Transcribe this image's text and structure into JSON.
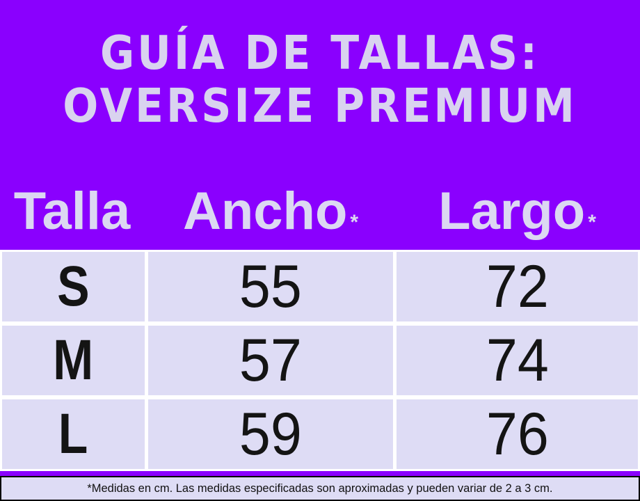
{
  "title": {
    "line1": "GUÍA DE TALLAS:",
    "line2": "OVERSIZE PREMIUM"
  },
  "table": {
    "columns": [
      {
        "label": "Talla",
        "suffix": ""
      },
      {
        "label": "Ancho",
        "suffix": "*"
      },
      {
        "label": "Largo",
        "suffix": "*"
      }
    ],
    "rows": [
      {
        "talla": "S",
        "ancho": "55",
        "largo": "72"
      },
      {
        "talla": "M",
        "ancho": "57",
        "largo": "74"
      },
      {
        "talla": "L",
        "ancho": "59",
        "largo": "76"
      }
    ]
  },
  "footnote": "*Medidas en cm. Las medidas especificadas son aproximadas y pueden variar de 2 a 3 cm.",
  "colors": {
    "background": "#8A00FE",
    "cell_background": "#DEDCF5",
    "light_text": "#D9D3EF",
    "dark_text": "#141414",
    "grid_lines": "#FFFFFF",
    "footnote_border": "#000000"
  },
  "chart_data": {
    "type": "table",
    "title": "GUÍA DE TALLAS: OVERSIZE PREMIUM",
    "columns": [
      "Talla",
      "Ancho*",
      "Largo*"
    ],
    "rows": [
      [
        "S",
        55,
        72
      ],
      [
        "M",
        57,
        74
      ],
      [
        "L",
        59,
        76
      ]
    ],
    "units": "cm",
    "note": "*Medidas en cm. Las medidas especificadas son aproximadas y pueden variar de 2 a 3 cm."
  }
}
